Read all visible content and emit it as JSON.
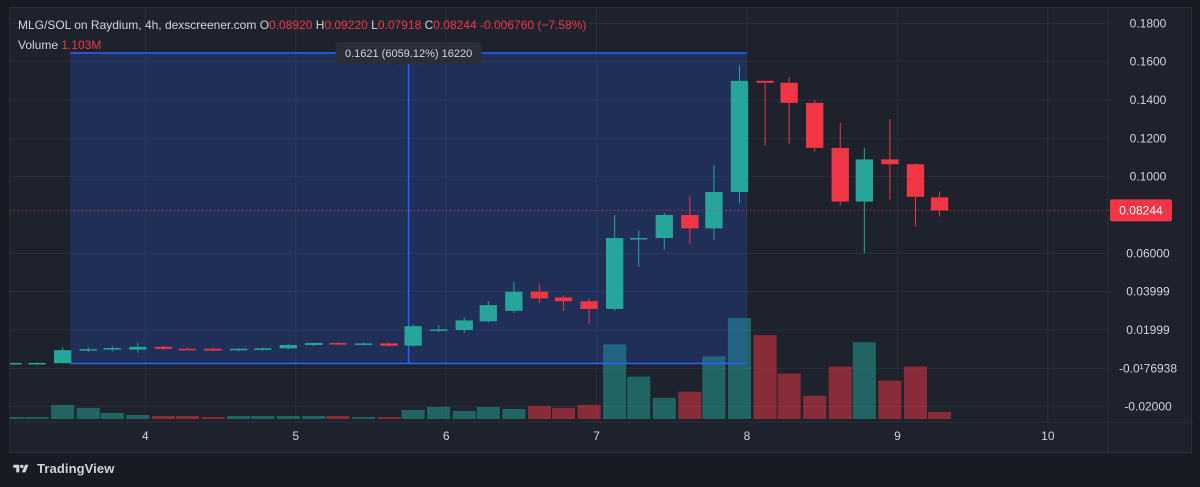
{
  "header": {
    "symbol": "MLG/SOL on Raydium, 4h, dexscreener.com",
    "o_label": "O",
    "o_value": "0.08920",
    "h_label": "H",
    "h_value": "0.09220",
    "l_label": "L",
    "l_value": "0.07918",
    "c_label": "C",
    "c_value": "0.08244",
    "change": "-0.006760 (−7.58%)",
    "volume_label": "Volume",
    "volume_value": "1.103M"
  },
  "measure": {
    "tooltip": "0.1621 (6059.12%) 16220"
  },
  "last_price_label": "0.08244",
  "branding": "TradingView",
  "colors": {
    "up": "#26a69a",
    "down": "#f23645",
    "measure": "#2962ff",
    "background": "#1e222d"
  },
  "chart_data": {
    "type": "candlestick",
    "interval": "4h",
    "y_ticks": [
      "0.1800",
      "0.1600",
      "0.1400",
      "0.1200",
      "0.1000",
      "0.06000",
      "0.03999",
      "0.01999",
      "-0.0¹76938",
      "-0.02000"
    ],
    "y_tick_values": [
      0.18,
      0.16,
      0.14,
      0.12,
      0.1,
      0.06,
      0.03999,
      0.01999,
      -0.0,
      -0.02
    ],
    "x_ticks": [
      "4",
      "5",
      "6",
      "7",
      "8",
      "9",
      "10"
    ],
    "x_tick_values": [
      4,
      5,
      6,
      7,
      8,
      9,
      10
    ],
    "ylim": [
      -0.028,
      0.188
    ],
    "xlim": [
      3.1,
      10.4
    ],
    "last_price": 0.08244,
    "measure_range": {
      "x_start": 3.5,
      "x_end": 8.0,
      "price_low": 0.0025,
      "price_high": 0.1645,
      "change": 0.1621,
      "change_pct": "6059.12%",
      "bars": 16220
    },
    "candles": [
      {
        "t": 2.95,
        "o": 0.0026,
        "h": 0.0028,
        "l": 0.0024,
        "c": 0.0027
      },
      {
        "t": 3.12,
        "o": 0.0027,
        "h": 0.0029,
        "l": 0.0025,
        "c": 0.0028
      },
      {
        "t": 3.28,
        "o": 0.0027,
        "h": 0.003,
        "l": 0.0024,
        "c": 0.0028
      },
      {
        "t": 3.45,
        "o": 0.0027,
        "h": 0.011,
        "l": 0.0025,
        "c": 0.0095
      },
      {
        "t": 3.62,
        "o": 0.0095,
        "h": 0.011,
        "l": 0.0085,
        "c": 0.01
      },
      {
        "t": 3.78,
        "o": 0.0098,
        "h": 0.0115,
        "l": 0.0088,
        "c": 0.0106
      },
      {
        "t": 3.95,
        "o": 0.0098,
        "h": 0.0135,
        "l": 0.0082,
        "c": 0.0112
      },
      {
        "t": 4.12,
        "o": 0.0112,
        "h": 0.0118,
        "l": 0.0095,
        "c": 0.0102
      },
      {
        "t": 4.28,
        "o": 0.0102,
        "h": 0.011,
        "l": 0.0094,
        "c": 0.01
      },
      {
        "t": 4.45,
        "o": 0.0102,
        "h": 0.0108,
        "l": 0.0088,
        "c": 0.0093
      },
      {
        "t": 4.62,
        "o": 0.0094,
        "h": 0.0106,
        "l": 0.0089,
        "c": 0.0102
      },
      {
        "t": 4.78,
        "o": 0.01,
        "h": 0.0108,
        "l": 0.0092,
        "c": 0.0104
      },
      {
        "t": 4.95,
        "o": 0.0104,
        "h": 0.0128,
        "l": 0.01,
        "c": 0.0122
      },
      {
        "t": 5.12,
        "o": 0.0122,
        "h": 0.0135,
        "l": 0.0114,
        "c": 0.0132
      },
      {
        "t": 5.28,
        "o": 0.0132,
        "h": 0.0136,
        "l": 0.012,
        "c": 0.0126
      },
      {
        "t": 5.45,
        "o": 0.0126,
        "h": 0.0134,
        "l": 0.012,
        "c": 0.013
      },
      {
        "t": 5.62,
        "o": 0.013,
        "h": 0.0134,
        "l": 0.0114,
        "c": 0.0118
      },
      {
        "t": 5.78,
        "o": 0.0118,
        "h": 0.023,
        "l": 0.0115,
        "c": 0.022
      },
      {
        "t": 5.95,
        "o": 0.02,
        "h": 0.0225,
        "l": 0.019,
        "c": 0.0203
      },
      {
        "t": 6.12,
        "o": 0.02,
        "h": 0.0265,
        "l": 0.0185,
        "c": 0.025
      },
      {
        "t": 6.28,
        "o": 0.0245,
        "h": 0.035,
        "l": 0.024,
        "c": 0.033
      },
      {
        "t": 6.45,
        "o": 0.03,
        "h": 0.045,
        "l": 0.029,
        "c": 0.04
      },
      {
        "t": 6.62,
        "o": 0.04,
        "h": 0.044,
        "l": 0.034,
        "c": 0.0365
      },
      {
        "t": 6.78,
        "o": 0.037,
        "h": 0.038,
        "l": 0.03,
        "c": 0.035
      },
      {
        "t": 6.95,
        "o": 0.035,
        "h": 0.0365,
        "l": 0.023,
        "c": 0.031
      },
      {
        "t": 7.12,
        "o": 0.031,
        "h": 0.08,
        "l": 0.03,
        "c": 0.068
      },
      {
        "t": 7.28,
        "o": 0.068,
        "h": 0.072,
        "l": 0.053,
        "c": 0.068
      },
      {
        "t": 7.45,
        "o": 0.068,
        "h": 0.081,
        "l": 0.062,
        "c": 0.08
      },
      {
        "t": 7.62,
        "o": 0.08,
        "h": 0.09,
        "l": 0.065,
        "c": 0.073
      },
      {
        "t": 7.78,
        "o": 0.073,
        "h": 0.106,
        "l": 0.067,
        "c": 0.092
      },
      {
        "t": 7.95,
        "o": 0.092,
        "h": 0.158,
        "l": 0.086,
        "c": 0.15
      },
      {
        "t": 8.12,
        "o": 0.15,
        "h": 0.15,
        "l": 0.116,
        "c": 0.149
      },
      {
        "t": 8.28,
        "o": 0.149,
        "h": 0.152,
        "l": 0.117,
        "c": 0.1385
      },
      {
        "t": 8.45,
        "o": 0.1385,
        "h": 0.14,
        "l": 0.113,
        "c": 0.115
      },
      {
        "t": 8.62,
        "o": 0.115,
        "h": 0.128,
        "l": 0.085,
        "c": 0.087
      },
      {
        "t": 8.78,
        "o": 0.087,
        "h": 0.115,
        "l": 0.06,
        "c": 0.109
      },
      {
        "t": 8.95,
        "o": 0.109,
        "h": 0.13,
        "l": 0.088,
        "c": 0.1065
      },
      {
        "t": 9.12,
        "o": 0.1065,
        "h": 0.107,
        "l": 0.074,
        "c": 0.0895
      },
      {
        "t": 9.28,
        "o": 0.0892,
        "h": 0.0922,
        "l": 0.0792,
        "c": 0.0824
      }
    ],
    "volume_ylim": [
      0,
      1.0
    ],
    "volumes": [
      0.02,
      0.02,
      0.02,
      0.14,
      0.11,
      0.06,
      0.04,
      0.03,
      0.03,
      0.02,
      0.03,
      0.03,
      0.03,
      0.03,
      0.03,
      0.02,
      0.02,
      0.09,
      0.12,
      0.08,
      0.12,
      0.1,
      0.13,
      0.11,
      0.14,
      0.74,
      0.42,
      0.21,
      0.27,
      0.62,
      1.0,
      0.83,
      0.45,
      0.23,
      0.52,
      0.76,
      0.38,
      0.52,
      0.07
    ]
  }
}
